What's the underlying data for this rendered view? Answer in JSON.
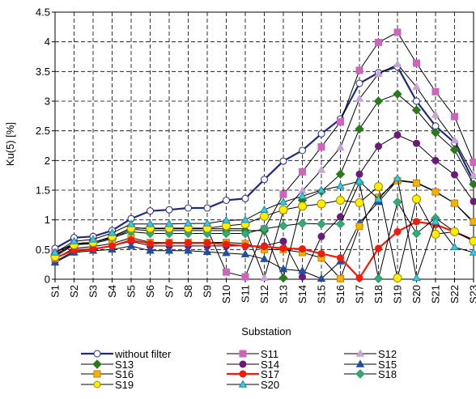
{
  "chart_data": {
    "type": "line",
    "title": "",
    "xlabel": "Substation",
    "ylabel": "Ku(5)  [%]",
    "ylim": [
      0,
      4.5
    ],
    "yticks": [
      "0",
      "0.5",
      "1",
      "1.5",
      "2",
      "2.5",
      "3",
      "3.5",
      "4",
      "4.5"
    ],
    "grid": true,
    "legend_position": "bottom",
    "categories": [
      "S1",
      "S2",
      "S3",
      "S4",
      "S5",
      "S6",
      "S7",
      "S8",
      "S9",
      "S10",
      "S11",
      "S12",
      "S13",
      "S14",
      "S15",
      "S16",
      "S17",
      "S18",
      "S19",
      "S20",
      "S21",
      "S22",
      "S23"
    ],
    "series": [
      {
        "name": "without filter",
        "color": "#1f2a80",
        "marker": "circle",
        "fill": "#ffffff",
        "width": 2.2,
        "msize": 4,
        "values": [
          0.52,
          0.7,
          0.72,
          0.82,
          1.02,
          1.15,
          1.17,
          1.2,
          1.2,
          1.33,
          1.36,
          1.68,
          1.99,
          2.17,
          2.45,
          2.7,
          3.3,
          3.48,
          3.58,
          3.0,
          2.58,
          2.3,
          1.65
        ]
      },
      {
        "name": "S11",
        "color": "#cc66bb",
        "marker": "square",
        "fill": "#cc66bb",
        "width": 1,
        "values": [
          0.45,
          0.6,
          0.62,
          0.7,
          0.87,
          0.85,
          0.85,
          0.85,
          0.85,
          0.12,
          0.04,
          0.85,
          1.43,
          1.81,
          2.23,
          2.65,
          3.52,
          3.99,
          4.16,
          3.64,
          3.16,
          2.74,
          1.97
        ]
      },
      {
        "name": "S12",
        "color": "#c9a3d6",
        "marker": "triangle",
        "fill": "#c9a3d6",
        "width": 1,
        "values": [
          0.45,
          0.6,
          0.62,
          0.7,
          0.87,
          0.85,
          0.85,
          0.85,
          0.85,
          0.85,
          0.85,
          0.02,
          1.15,
          1.49,
          1.84,
          2.22,
          3.04,
          3.46,
          3.62,
          3.24,
          2.77,
          2.34,
          1.75
        ]
      },
      {
        "name": "S13",
        "color": "#2a7a1a",
        "marker": "diamond",
        "fill": "#2a7a1a",
        "width": 1,
        "values": [
          0.42,
          0.58,
          0.6,
          0.68,
          0.84,
          0.82,
          0.82,
          0.82,
          0.82,
          0.82,
          0.82,
          0.82,
          0.02,
          1.33,
          1.48,
          1.77,
          2.53,
          3.0,
          3.12,
          2.85,
          2.47,
          2.18,
          1.6
        ]
      },
      {
        "name": "S14",
        "color": "#6a1a7a",
        "marker": "circle",
        "fill": "#6a1a7a",
        "width": 1,
        "values": [
          0.3,
          0.47,
          0.5,
          0.56,
          0.64,
          0.56,
          0.56,
          0.56,
          0.56,
          0.56,
          0.56,
          0.56,
          0.64,
          0.04,
          0.72,
          1.05,
          1.77,
          2.24,
          2.43,
          2.29,
          2.0,
          1.76,
          1.31
        ]
      },
      {
        "name": "S15",
        "color": "#1f4fa0",
        "marker": "triangle",
        "fill": "#1f4fa0",
        "width": 1,
        "values": [
          0.28,
          0.45,
          0.48,
          0.5,
          0.56,
          0.48,
          0.48,
          0.48,
          0.46,
          0.44,
          0.42,
          0.34,
          0.17,
          0.14,
          0.01,
          0.3,
          0.95,
          1.3,
          1.67,
          1.63,
          1.48,
          1.28,
          0.95
        ]
      },
      {
        "name": "S16",
        "color": "#d08000",
        "marker": "square",
        "fill": "#f2b200",
        "width": 1,
        "values": [
          0.35,
          0.52,
          0.55,
          0.6,
          0.7,
          0.62,
          0.62,
          0.62,
          0.62,
          0.62,
          0.6,
          0.5,
          0.5,
          0.45,
          0.36,
          0.01,
          0.89,
          1.38,
          1.66,
          1.62,
          1.47,
          1.28,
          0.97
        ]
      },
      {
        "name": "S17",
        "color": "#ee1c0c",
        "marker": "circle",
        "fill": "#ee1c0c",
        "width": 2.2,
        "msize": 4,
        "values": [
          0.36,
          0.49,
          0.51,
          0.56,
          0.66,
          0.6,
          0.61,
          0.61,
          0.61,
          0.59,
          0.56,
          0.55,
          0.52,
          0.51,
          0.43,
          0.36,
          0.02,
          0.52,
          0.8,
          0.97,
          0.92,
          0.8,
          0.66
        ]
      },
      {
        "name": "S18",
        "color": "#1f9a6a",
        "marker": "diamond",
        "fill": "#3aa870",
        "width": 1,
        "values": [
          0.4,
          0.6,
          0.62,
          0.7,
          0.8,
          0.77,
          0.77,
          0.77,
          0.77,
          0.77,
          0.77,
          0.85,
          0.9,
          0.94,
          0.93,
          0.93,
          1.63,
          0.01,
          1.3,
          0.77,
          1.03,
          0.8,
          0.66
        ]
      },
      {
        "name": "S19",
        "color": "#9a8a00",
        "marker": "circle",
        "fill": "#ffee00",
        "width": 1,
        "msize": 5,
        "values": [
          0.38,
          0.58,
          0.62,
          0.72,
          0.86,
          0.86,
          0.86,
          0.86,
          0.86,
          0.9,
          0.93,
          1.06,
          1.17,
          1.23,
          1.27,
          1.33,
          1.29,
          1.56,
          0.02,
          1.35,
          0.76,
          0.8,
          0.64
        ]
      },
      {
        "name": "S20",
        "color": "#1a8aaa",
        "marker": "triangle",
        "fill": "#3ec8e0",
        "width": 1,
        "values": [
          0.45,
          0.64,
          0.67,
          0.78,
          0.93,
          0.93,
          0.93,
          0.94,
          0.94,
          0.99,
          1.0,
          1.17,
          1.3,
          1.4,
          1.5,
          1.57,
          1.65,
          1.35,
          1.7,
          0.02,
          0.97,
          0.54,
          0.45
        ]
      }
    ]
  }
}
